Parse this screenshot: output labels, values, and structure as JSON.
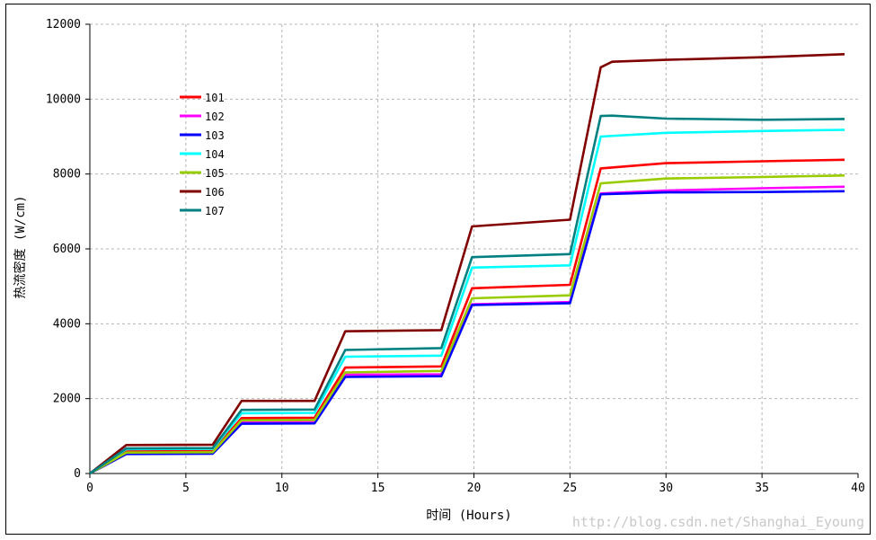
{
  "chart_data": {
    "type": "line",
    "title": "",
    "xlabel": "时间 (Hours)",
    "ylabel": "热流密度 (W/cm)",
    "xlim": [
      0,
      40
    ],
    "ylim": [
      0,
      12000
    ],
    "xticks": [
      0,
      5,
      10,
      15,
      20,
      25,
      30,
      35,
      40
    ],
    "yticks": [
      0,
      2000,
      4000,
      6000,
      8000,
      10000,
      12000
    ],
    "grid": true,
    "legend_position": "upper-left",
    "series": [
      {
        "name": "101",
        "color": "#ff0000",
        "x": [
          0,
          1.9,
          6.4,
          7.9,
          11.7,
          13.3,
          18.3,
          19.9,
          25.0,
          26.6,
          30,
          35,
          39.3
        ],
        "y": [
          0,
          590,
          600,
          1480,
          1490,
          2830,
          2860,
          4950,
          5040,
          8150,
          8290,
          8340,
          8380
        ]
      },
      {
        "name": "102",
        "color": "#ff00ff",
        "x": [
          0,
          1.9,
          6.4,
          7.9,
          11.7,
          13.3,
          18.3,
          19.9,
          25.0,
          26.6,
          30,
          35,
          39.3
        ],
        "y": [
          0,
          540,
          550,
          1370,
          1380,
          2640,
          2650,
          4520,
          4580,
          7480,
          7560,
          7620,
          7660
        ]
      },
      {
        "name": "103",
        "color": "#0000ff",
        "x": [
          0,
          1.9,
          6.4,
          7.9,
          11.7,
          13.3,
          18.3,
          19.9,
          25.0,
          26.6,
          30,
          35,
          39.3
        ],
        "y": [
          0,
          520,
          530,
          1330,
          1340,
          2580,
          2600,
          4500,
          4550,
          7460,
          7510,
          7520,
          7540
        ]
      },
      {
        "name": "104",
        "color": "#00ffff",
        "x": [
          0,
          1.9,
          6.4,
          7.9,
          11.7,
          13.3,
          18.3,
          19.9,
          25.0,
          26.6,
          30,
          35,
          39.3
        ],
        "y": [
          0,
          650,
          660,
          1610,
          1620,
          3120,
          3150,
          5500,
          5560,
          9000,
          9100,
          9150,
          9180
        ]
      },
      {
        "name": "105",
        "color": "#99cc00",
        "x": [
          0,
          1.9,
          6.4,
          7.9,
          11.7,
          13.3,
          18.3,
          19.9,
          25.0,
          26.6,
          30,
          35,
          39.3
        ],
        "y": [
          0,
          560,
          570,
          1420,
          1430,
          2700,
          2740,
          4680,
          4760,
          7750,
          7880,
          7920,
          7960
        ]
      },
      {
        "name": "106",
        "color": "#800000",
        "x": [
          0,
          1.9,
          6.4,
          7.9,
          11.7,
          13.3,
          18.3,
          19.9,
          25.0,
          26.6,
          27.2,
          30,
          35,
          39.3
        ],
        "y": [
          0,
          760,
          770,
          1940,
          1940,
          3800,
          3830,
          6600,
          6780,
          10850,
          11000,
          11050,
          11120,
          11200
        ]
      },
      {
        "name": "107",
        "color": "#008080",
        "x": [
          0,
          1.9,
          6.4,
          7.9,
          11.7,
          13.3,
          18.3,
          19.9,
          25.0,
          26.6,
          27.2,
          30,
          35,
          39.3
        ],
        "y": [
          0,
          670,
          680,
          1700,
          1710,
          3300,
          3350,
          5780,
          5860,
          9550,
          9560,
          9480,
          9450,
          9470
        ]
      }
    ]
  },
  "watermark": "http://blog.csdn.net/Shanghai_Eyoung"
}
